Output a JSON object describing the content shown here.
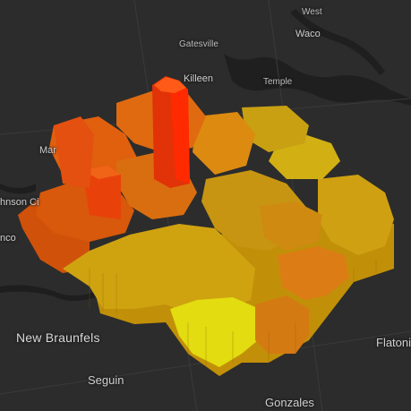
{
  "map": {
    "basemap": "dark",
    "labels": [
      {
        "id": "west",
        "text": "West"
      },
      {
        "id": "waco",
        "text": "Waco"
      },
      {
        "id": "gatesville",
        "text": "Gatesville"
      },
      {
        "id": "killeen",
        "text": "Killeen"
      },
      {
        "id": "temple",
        "text": "Temple"
      },
      {
        "id": "marble-falls",
        "text": "Mar"
      },
      {
        "id": "johnson-city",
        "text": "hnson Ci"
      },
      {
        "id": "blanco",
        "text": "nco"
      },
      {
        "id": "new-braunfels",
        "text": "New Braunfels"
      },
      {
        "id": "seguin",
        "text": "Seguin"
      },
      {
        "id": "gonzales",
        "text": "Gonzales"
      },
      {
        "id": "flatonia",
        "text": "Flatoni"
      }
    ],
    "extrusion_colors": {
      "low": "#e8e800",
      "mid": "#e09a10",
      "high": "#f06010",
      "peak": "#ff2a00"
    }
  }
}
